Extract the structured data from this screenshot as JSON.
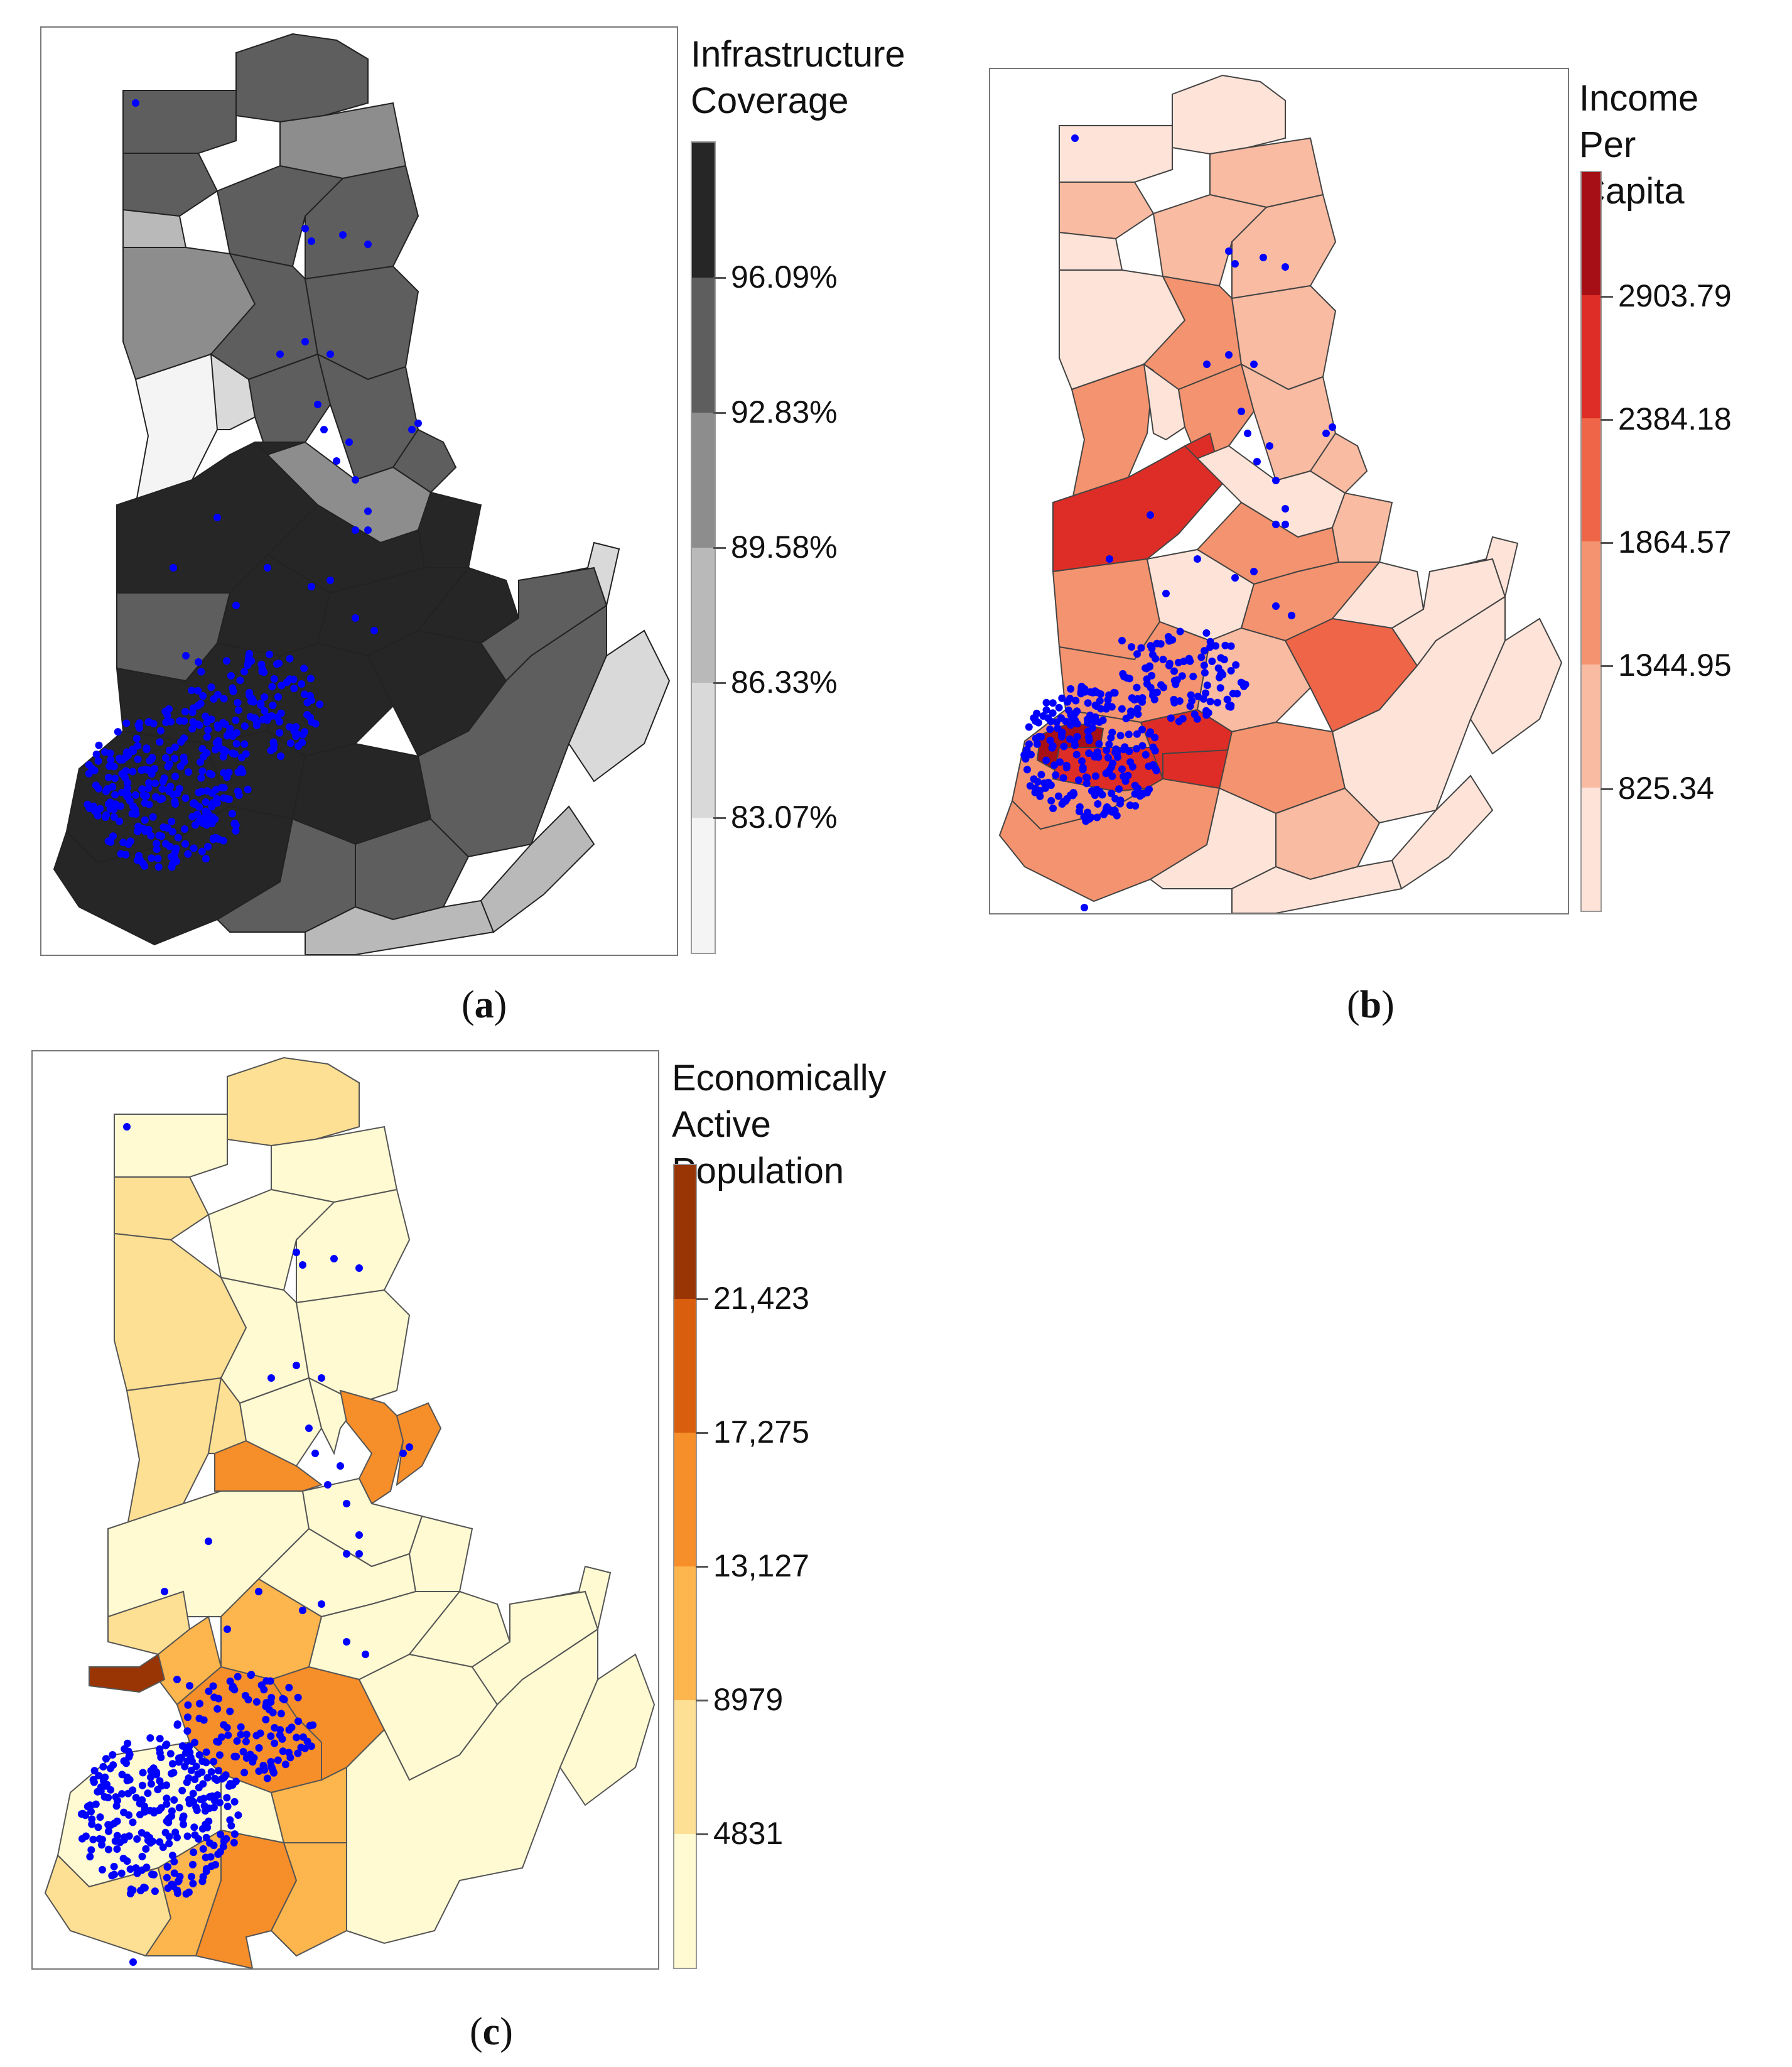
{
  "panels": [
    {
      "id": "a",
      "caption_open": "(",
      "caption_letter": "a",
      "caption_close": ")",
      "legend_title": "Infrastructure\nCoverage",
      "ticks": [
        "96.09%",
        "92.83%",
        "89.58%",
        "86.33%",
        "83.07%"
      ],
      "colors": [
        "#262626",
        "#5e5e5e",
        "#8d8d8d",
        "#b9b9b9",
        "#d9d9d9",
        "#f4f4f4"
      ],
      "point_color": "#0000ff"
    },
    {
      "id": "b",
      "caption_open": "(",
      "caption_letter": "b",
      "caption_close": ")",
      "legend_title": "Income Per\nCapita",
      "ticks": [
        "2903.79",
        "2384.18",
        "1864.57",
        "1344.95",
        "825.34"
      ],
      "colors": [
        "#a50f15",
        "#de2d26",
        "#ef6548",
        "#f4936f",
        "#f9bba2",
        "#fde3d8"
      ],
      "point_color": "#0000ff"
    },
    {
      "id": "c",
      "caption_open": "(",
      "caption_letter": "c",
      "caption_close": ")",
      "legend_title": "Economically\nActive Population",
      "ticks": [
        "21,423",
        "17,275",
        "13,127",
        "8979",
        "4831"
      ],
      "colors": [
        "#993404",
        "#d95f0e",
        "#f68e2a",
        "#fdb54d",
        "#fee094",
        "#fffad2"
      ],
      "point_color": "#0000ff"
    }
  ]
}
